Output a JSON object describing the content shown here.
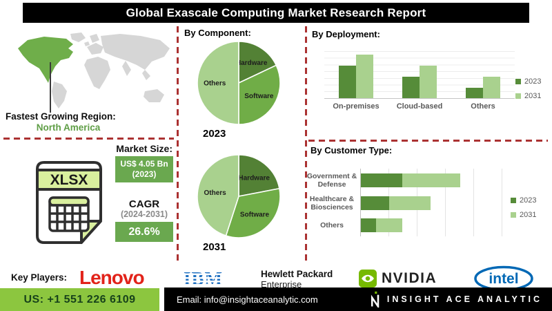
{
  "banner": {
    "title": "Global Exascale Computing Market Research Report"
  },
  "map": {
    "region_label": "Fastest Growing Region:",
    "region_value": "North America"
  },
  "market": {
    "size_label": "Market Size:",
    "size_value": "US$ 4.05 Bn",
    "size_year": "(2023)",
    "cagr_label": "CAGR",
    "cagr_period": "(2024-2031)",
    "cagr_value": "26.6%",
    "file_icon_label": "XLSX"
  },
  "chart_data": [
    {
      "type": "pie",
      "title": "By Component:",
      "year": "2023",
      "labels": [
        "Hardware",
        "Software",
        "Others"
      ],
      "values": [
        18,
        32,
        50
      ],
      "colors": [
        "#538135",
        "#70ad47",
        "#a9d18e"
      ],
      "note": "percent shares estimated from slice angles; no numeric labels shown"
    },
    {
      "type": "pie",
      "year": "2031",
      "labels": [
        "Hardware",
        "Software",
        "Others"
      ],
      "values": [
        22,
        33,
        45
      ],
      "colors": [
        "#538135",
        "#70ad47",
        "#a9d18e"
      ],
      "note": "percent shares estimated from slice angles; no numeric labels shown"
    },
    {
      "type": "bar",
      "title": "By Deployment:",
      "categories": [
        "On-premises",
        "Cloud-based",
        "Others"
      ],
      "series": [
        {
          "name": "2023",
          "values": [
            69,
            45,
            22
          ]
        },
        {
          "name": "2031",
          "values": [
            92,
            69,
            46
          ]
        }
      ],
      "series_colors": [
        "#568c39",
        "#a9d18e"
      ],
      "legend_position": "right",
      "grid": "horizontal",
      "ylim": [
        0,
        100
      ],
      "note": "axis unlabeled; values are relative heights (0-100) estimated from pixels"
    },
    {
      "type": "bar-horizontal-stacked",
      "title": "By Customer Type:",
      "categories": [
        "Government & Defense",
        "Healthcare & Biosciences",
        "Others"
      ],
      "series": [
        {
          "name": "2023",
          "values": [
            28,
            19,
            10
          ]
        },
        {
          "name": "2031",
          "values": [
            39,
            28,
            18
          ]
        }
      ],
      "series_colors": [
        "#568c39",
        "#a9d18e"
      ],
      "legend_position": "right",
      "grid": "vertical",
      "xlim": [
        0,
        100
      ],
      "note": "axis unlabeled; values are relative lengths (0-100) estimated from pixels"
    }
  ],
  "key_players": {
    "label": "Key Players:",
    "lenovo": "Lenovo",
    "ibm": "IBM",
    "hpe_line1": "Hewlett Packard",
    "hpe_line2": "Enterprise",
    "nvidia": "NVIDIA",
    "intel": "intel"
  },
  "footer": {
    "phone": "US: +1 551 226 6109",
    "email": "Email: info@insightaceanalytic.com",
    "brand": "INSIGHT ACE ANALYTIC"
  },
  "colors": {
    "banner_bg": "#000000",
    "dash_red": "#ab3232",
    "accent_green": "#6aa84f",
    "pie_dark": "#538135",
    "pie_mid": "#70ad47",
    "pie_light": "#a9d18e",
    "map_green": "#6fae4a",
    "map_gray": "#d6d6d6",
    "phone_bg": "#8cc63f",
    "lenovo_red": "#e2231a",
    "ibm_blue": "#1f70c1",
    "nvidia_green": "#76b900",
    "intel_blue": "#0068b5"
  }
}
